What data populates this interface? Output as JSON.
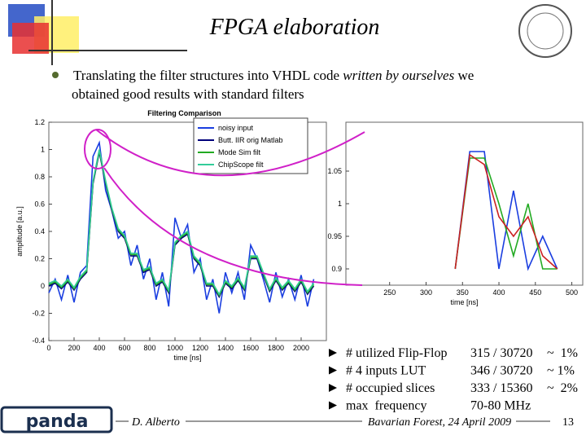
{
  "slide": {
    "title": "FPGA elaboration",
    "bullet_lines": [
      [
        "Translating the filter structures into VHDL code ",
        "written by ourselves",
        " we"
      ],
      [
        "obtained good results with standard filters"
      ]
    ],
    "stats": [
      {
        "item": "# utilized Flip-Flop",
        "value": "315 / 30720",
        "percent": "~  1%"
      },
      {
        "item": "# 4 inputs LUT",
        "value": "346 / 30720",
        "percent": "~ 1%"
      },
      {
        "item": "# occupied slices",
        "value": "333 / 15360",
        "percent": "~  2%"
      },
      {
        "item": "max  frequency",
        "value": "70-80 MHz"
      }
    ],
    "logo_text": "panda",
    "author": "D. Alberto",
    "footer": "Bavarian Forest, 24 April 2009",
    "page": "13"
  },
  "chart_data": [
    {
      "type": "line",
      "title": "Filtering Comparison",
      "xlabel": "time [ns]",
      "ylabel": "amplitude [a.u.]",
      "x": [
        0,
        50,
        100,
        150,
        200,
        250,
        300,
        350,
        400,
        450,
        500,
        550,
        600,
        650,
        700,
        750,
        800,
        850,
        900,
        950,
        1000,
        1050,
        1100,
        1150,
        1200,
        1250,
        1300,
        1350,
        1400,
        1450,
        1500,
        1550,
        1600,
        1650,
        1700,
        1750,
        1800,
        1850,
        1900,
        1950,
        2000,
        2050,
        2100
      ],
      "series": [
        {
          "name": "noisy input",
          "color": "#1a3ee0",
          "values": [
            -0.05,
            0.05,
            -0.1,
            0.08,
            -0.12,
            0.1,
            0.15,
            0.95,
            1.05,
            0.7,
            0.55,
            0.35,
            0.4,
            0.15,
            0.3,
            0.05,
            0.2,
            -0.1,
            0.1,
            -0.15,
            0.5,
            0.35,
            0.45,
            0.1,
            0.2,
            -0.1,
            0.05,
            -0.2,
            0.1,
            -0.05,
            0.1,
            -0.1,
            0.3,
            0.2,
            0.05,
            -0.12,
            0.1,
            -0.08,
            0.05,
            -0.1,
            0.08,
            -0.15,
            0.05
          ]
        },
        {
          "name": "Butt. IIR orig Matlab",
          "color": "#00007a",
          "values": [
            0,
            0.02,
            -0.02,
            0.03,
            -0.03,
            0.05,
            0.1,
            0.75,
            0.98,
            0.75,
            0.55,
            0.4,
            0.35,
            0.22,
            0.22,
            0.1,
            0.12,
            0,
            0.03,
            -0.05,
            0.3,
            0.35,
            0.38,
            0.2,
            0.15,
            0,
            0,
            -0.08,
            0.02,
            -0.02,
            0.04,
            -0.03,
            0.2,
            0.2,
            0.08,
            -0.04,
            0.04,
            -0.03,
            0.02,
            -0.04,
            0.03,
            -0.06,
            0
          ]
        },
        {
          "name": "Mode Sim filt",
          "color": "#22aa22",
          "values": [
            0.01,
            0.03,
            -0.01,
            0.04,
            -0.02,
            0.06,
            0.11,
            0.76,
            0.99,
            0.76,
            0.56,
            0.41,
            0.36,
            0.23,
            0.23,
            0.11,
            0.13,
            0.01,
            0.04,
            -0.04,
            0.31,
            0.36,
            0.39,
            0.21,
            0.16,
            0.01,
            0.01,
            -0.07,
            0.03,
            -0.01,
            0.05,
            -0.02,
            0.21,
            0.21,
            0.09,
            -0.03,
            0.05,
            -0.02,
            0.03,
            -0.03,
            0.04,
            -0.05,
            0.01
          ]
        },
        {
          "name": "ChipScope filt",
          "color": "#33cc99",
          "values": [
            0.02,
            0.04,
            0,
            0.05,
            -0.01,
            0.07,
            0.12,
            0.77,
            1,
            0.77,
            0.57,
            0.42,
            0.37,
            0.24,
            0.24,
            0.12,
            0.14,
            0.02,
            0.05,
            -0.03,
            0.32,
            0.37,
            0.4,
            0.22,
            0.17,
            0.02,
            0.02,
            -0.06,
            0.04,
            0,
            0.06,
            -0.01,
            0.22,
            0.22,
            0.1,
            -0.02,
            0.06,
            -0.01,
            0.04,
            -0.02,
            0.05,
            -0.04,
            0.02
          ]
        }
      ],
      "xlim": [
        0,
        2200
      ],
      "xticks": [
        0,
        200,
        400,
        600,
        800,
        1000,
        1200,
        1400,
        1600,
        1800,
        2000
      ],
      "ylim": [
        -0.4,
        1.2
      ],
      "yticks": [
        -0.4,
        -0.2,
        0,
        0.2,
        0.4,
        0.6,
        0.8,
        1,
        1.2
      ],
      "legend": "top-right"
    },
    {
      "type": "line",
      "xlabel": "time [ns]",
      "x": [
        340,
        360,
        380,
        400,
        420,
        440,
        460,
        480
      ],
      "series": [
        {
          "color": "#1a3ee0",
          "values": [
            0.9,
            1.08,
            1.08,
            0.9,
            1.02,
            0.9,
            0.95,
            0.9
          ]
        },
        {
          "color": "#22aa22",
          "values": [
            0.9,
            1.07,
            1.07,
            1.0,
            0.92,
            1.0,
            0.9,
            0.9
          ]
        },
        {
          "color": "#cc2222",
          "values": [
            0.9,
            1.075,
            1.06,
            0.98,
            0.95,
            0.98,
            0.92,
            0.9
          ]
        }
      ],
      "xlim": [
        190,
        515
      ],
      "xticks": [
        250,
        300,
        350,
        400,
        450,
        500
      ],
      "ylim": [
        0.875,
        1.125
      ],
      "yticks": [
        0.9,
        0.95,
        1,
        1.05
      ]
    }
  ]
}
